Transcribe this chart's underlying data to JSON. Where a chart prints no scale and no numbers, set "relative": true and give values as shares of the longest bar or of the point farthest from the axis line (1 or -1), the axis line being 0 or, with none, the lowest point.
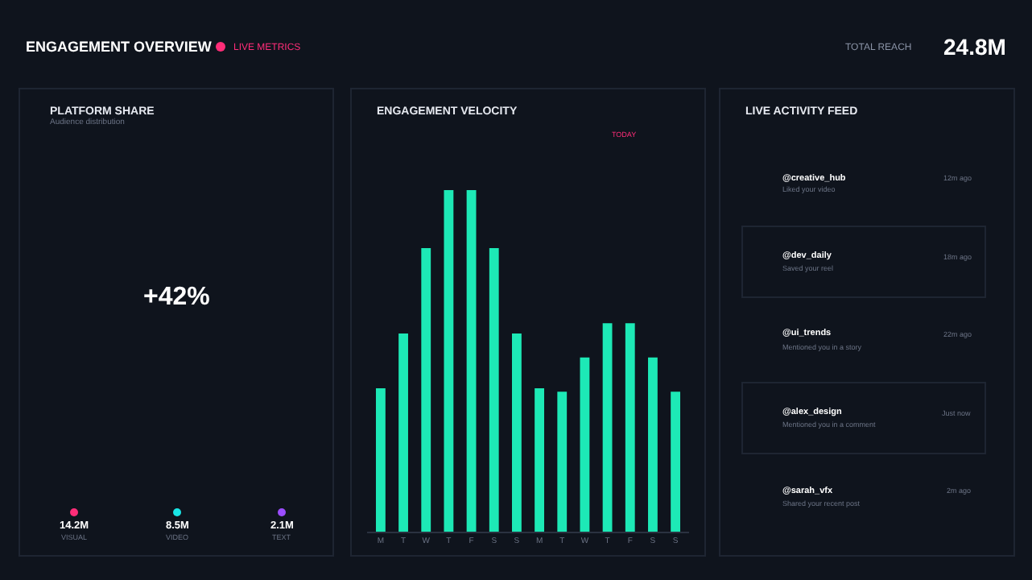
{
  "chart_data": [
    {
      "type": "other",
      "title": "ENGAGEMENT OVERVIEW",
      "annotations": [
        "LIVE METRICS",
        "TOTAL REACH",
        "24.8M"
      ],
      "colors": [
        "#ff2d78"
      ]
    },
    {
      "type": "other",
      "title": "PLATFORM SHARE",
      "subtitle": "Audience distribution",
      "annotations": [
        "+42%"
      ],
      "categories": [
        "VISUAL",
        "VIDEO",
        "TEXT"
      ],
      "values": [
        14.2,
        8.5,
        2.1
      ],
      "value_labels": [
        "14.2M",
        "8.5M",
        "2.1M"
      ],
      "colors": [
        "#ff2d78",
        "#19e6e6",
        "#9b4dff"
      ]
    },
    {
      "type": "bar",
      "title": "ENGAGEMENT VELOCITY",
      "relative": true,
      "categories": [
        "M",
        "T",
        "W",
        "T",
        "F",
        "S",
        "S",
        "M",
        "T",
        "W",
        "T",
        "F",
        "S",
        "S"
      ],
      "values": [
        0.42,
        0.58,
        0.83,
        1,
        1,
        0.83,
        0.58,
        0.42,
        0.41,
        0.51,
        0.61,
        0.61,
        0.51,
        0.41
      ],
      "color": "#1de9b6",
      "annotations": [
        "TODAY"
      ]
    },
    {
      "type": "other",
      "title": "LIVE ACTIVITY FEED",
      "annotations": [
        "@creative_hub",
        "Liked your video",
        "12m ago",
        "@dev_daily",
        "Saved your reel",
        "18m ago",
        "@ui_trends",
        "Mentioned you in a story",
        "22m ago",
        "@alex_design",
        "Mentioned you in a comment",
        "Just now",
        "@sarah_vfx",
        "Shared your recent post",
        "2m ago"
      ]
    }
  ]
}
